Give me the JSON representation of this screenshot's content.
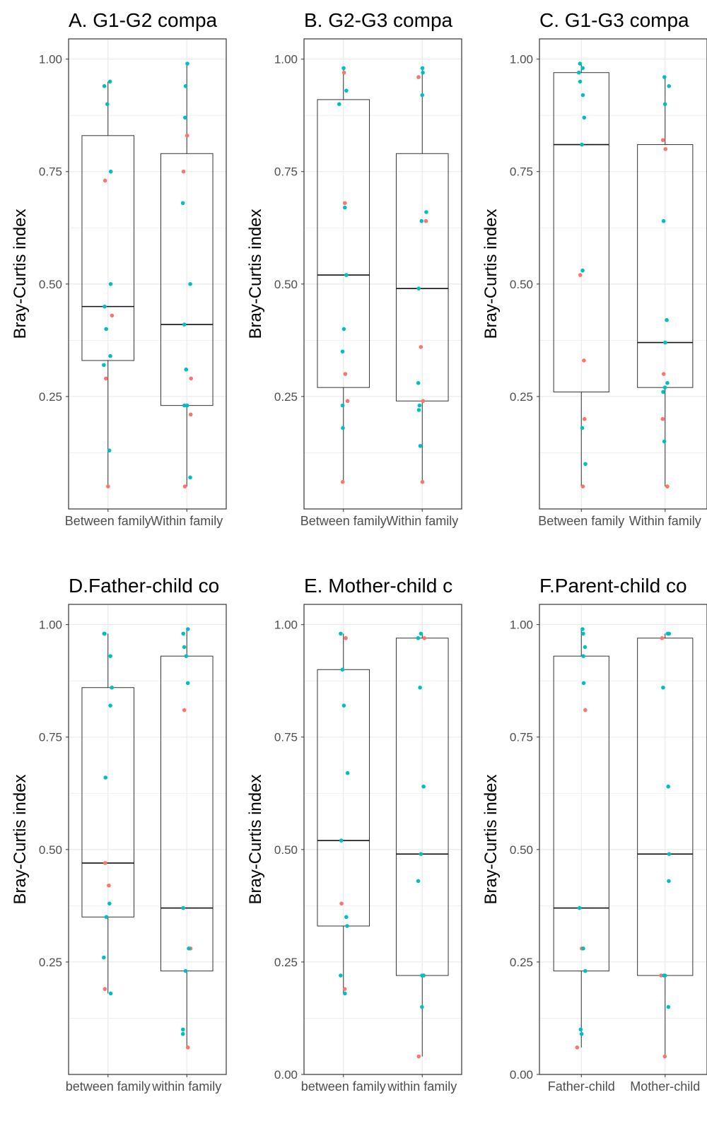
{
  "chart_data": [
    {
      "type": "box",
      "title": "A. G1-G2 compa",
      "ylabel": "Bray-Curtis index",
      "categories": [
        "Between family",
        "Within family"
      ],
      "yticks": [
        "1.00",
        "0.75",
        "0.50",
        "0.25"
      ],
      "ylim": [
        0.0,
        1.045
      ],
      "boxes": [
        {
          "q1": 0.33,
          "median": 0.45,
          "q3": 0.83,
          "wmin": 0.05,
          "wmax": 0.95
        },
        {
          "q1": 0.23,
          "median": 0.41,
          "q3": 0.79,
          "wmin": 0.05,
          "wmax": 0.99
        }
      ],
      "points": [
        [
          [
            0.95,
            "t"
          ],
          [
            0.94,
            "t"
          ],
          [
            0.9,
            "t"
          ],
          [
            0.75,
            "t"
          ],
          [
            0.73,
            "r"
          ],
          [
            0.5,
            "t"
          ],
          [
            0.45,
            "t"
          ],
          [
            0.43,
            "r"
          ],
          [
            0.4,
            "t"
          ],
          [
            0.34,
            "t"
          ],
          [
            0.32,
            "t"
          ],
          [
            0.29,
            "r"
          ],
          [
            0.13,
            "t"
          ],
          [
            0.05,
            "r"
          ]
        ],
        [
          [
            0.99,
            "t"
          ],
          [
            0.94,
            "t"
          ],
          [
            0.87,
            "t"
          ],
          [
            0.83,
            "r"
          ],
          [
            0.75,
            "r"
          ],
          [
            0.68,
            "t"
          ],
          [
            0.5,
            "t"
          ],
          [
            0.41,
            "t"
          ],
          [
            0.31,
            "t"
          ],
          [
            0.29,
            "r"
          ],
          [
            0.23,
            "t"
          ],
          [
            0.23,
            "t"
          ],
          [
            0.21,
            "r"
          ],
          [
            0.07,
            "t"
          ],
          [
            0.05,
            "r"
          ]
        ]
      ]
    },
    {
      "type": "box",
      "title": "B. G2-G3 compa",
      "ylabel": "Bray-Curtis index",
      "categories": [
        "Between family",
        "Within family"
      ],
      "yticks": [
        "1.00",
        "0.75",
        "0.50",
        "0.25"
      ],
      "ylim": [
        0.0,
        1.045
      ],
      "boxes": [
        {
          "q1": 0.27,
          "median": 0.52,
          "q3": 0.91,
          "wmin": 0.06,
          "wmax": 0.98
        },
        {
          "q1": 0.24,
          "median": 0.49,
          "q3": 0.79,
          "wmin": 0.06,
          "wmax": 0.98
        }
      ],
      "points": [
        [
          [
            0.98,
            "t"
          ],
          [
            0.97,
            "r"
          ],
          [
            0.93,
            "t"
          ],
          [
            0.9,
            "t"
          ],
          [
            0.68,
            "r"
          ],
          [
            0.67,
            "t"
          ],
          [
            0.52,
            "t"
          ],
          [
            0.4,
            "t"
          ],
          [
            0.35,
            "t"
          ],
          [
            0.3,
            "r"
          ],
          [
            0.24,
            "r"
          ],
          [
            0.23,
            "t"
          ],
          [
            0.18,
            "t"
          ],
          [
            0.06,
            "r"
          ]
        ],
        [
          [
            0.98,
            "t"
          ],
          [
            0.97,
            "t"
          ],
          [
            0.96,
            "r"
          ],
          [
            0.92,
            "t"
          ],
          [
            0.66,
            "t"
          ],
          [
            0.64,
            "t"
          ],
          [
            0.64,
            "r"
          ],
          [
            0.49,
            "t"
          ],
          [
            0.36,
            "r"
          ],
          [
            0.28,
            "t"
          ],
          [
            0.24,
            "r"
          ],
          [
            0.23,
            "t"
          ],
          [
            0.22,
            "t"
          ],
          [
            0.14,
            "t"
          ],
          [
            0.06,
            "r"
          ]
        ]
      ]
    },
    {
      "type": "box",
      "title": "C. G1-G3 compa",
      "ylabel": "Bray-Curtis index",
      "categories": [
        "Between family",
        "Within family"
      ],
      "yticks": [
        "1.00",
        "0.75",
        "0.50",
        "0.25"
      ],
      "ylim": [
        0.0,
        1.045
      ],
      "boxes": [
        {
          "q1": 0.26,
          "median": 0.81,
          "q3": 0.97,
          "wmin": 0.05,
          "wmax": 0.99
        },
        {
          "q1": 0.27,
          "median": 0.37,
          "q3": 0.81,
          "wmin": 0.05,
          "wmax": 0.96
        }
      ],
      "points": [
        [
          [
            0.99,
            "t"
          ],
          [
            0.98,
            "t"
          ],
          [
            0.97,
            "t"
          ],
          [
            0.95,
            "t"
          ],
          [
            0.92,
            "t"
          ],
          [
            0.87,
            "t"
          ],
          [
            0.81,
            "t"
          ],
          [
            0.53,
            "t"
          ],
          [
            0.52,
            "r"
          ],
          [
            0.33,
            "r"
          ],
          [
            0.2,
            "r"
          ],
          [
            0.18,
            "t"
          ],
          [
            0.1,
            "t"
          ],
          [
            0.05,
            "r"
          ]
        ],
        [
          [
            0.96,
            "t"
          ],
          [
            0.94,
            "t"
          ],
          [
            0.9,
            "t"
          ],
          [
            0.82,
            "r"
          ],
          [
            0.8,
            "r"
          ],
          [
            0.64,
            "t"
          ],
          [
            0.42,
            "t"
          ],
          [
            0.37,
            "t"
          ],
          [
            0.3,
            "r"
          ],
          [
            0.28,
            "t"
          ],
          [
            0.27,
            "t"
          ],
          [
            0.26,
            "t"
          ],
          [
            0.2,
            "r"
          ],
          [
            0.15,
            "t"
          ],
          [
            0.05,
            "r"
          ]
        ]
      ]
    },
    {
      "type": "box",
      "title": "D.Father-child co",
      "ylabel": "Bray-Curtis index",
      "categories": [
        "between family",
        "within family"
      ],
      "yticks": [
        "1.00",
        "0.75",
        "0.50",
        "0.25"
      ],
      "ylim": [
        0.0,
        1.045
      ],
      "boxes": [
        {
          "q1": 0.35,
          "median": 0.47,
          "q3": 0.86,
          "wmin": 0.18,
          "wmax": 0.98
        },
        {
          "q1": 0.23,
          "median": 0.37,
          "q3": 0.93,
          "wmin": 0.06,
          "wmax": 0.99
        }
      ],
      "points": [
        [
          [
            0.98,
            "t"
          ],
          [
            0.98,
            "t"
          ],
          [
            0.93,
            "t"
          ],
          [
            0.86,
            "t"
          ],
          [
            0.82,
            "t"
          ],
          [
            0.66,
            "t"
          ],
          [
            0.47,
            "r"
          ],
          [
            0.42,
            "r"
          ],
          [
            0.38,
            "t"
          ],
          [
            0.35,
            "t"
          ],
          [
            0.26,
            "t"
          ],
          [
            0.19,
            "r"
          ],
          [
            0.18,
            "t"
          ]
        ],
        [
          [
            0.99,
            "t"
          ],
          [
            0.98,
            "t"
          ],
          [
            0.95,
            "t"
          ],
          [
            0.93,
            "t"
          ],
          [
            0.87,
            "t"
          ],
          [
            0.81,
            "r"
          ],
          [
            0.37,
            "t"
          ],
          [
            0.28,
            "r"
          ],
          [
            0.28,
            "t"
          ],
          [
            0.23,
            "t"
          ],
          [
            0.1,
            "t"
          ],
          [
            0.09,
            "t"
          ],
          [
            0.06,
            "r"
          ]
        ]
      ]
    },
    {
      "type": "box",
      "title": "E. Mother-child c",
      "ylabel": "Bray-Curtis index",
      "categories": [
        "between family",
        "within family"
      ],
      "yticks": [
        "1.00",
        "0.75",
        "0.50",
        "0.25",
        "0.00"
      ],
      "ylim": [
        0.0,
        1.045
      ],
      "boxes": [
        {
          "q1": 0.33,
          "median": 0.52,
          "q3": 0.9,
          "wmin": 0.18,
          "wmax": 0.98
        },
        {
          "q1": 0.22,
          "median": 0.49,
          "q3": 0.97,
          "wmin": 0.04,
          "wmax": 0.98
        }
      ],
      "points": [
        [
          [
            0.98,
            "t"
          ],
          [
            0.97,
            "r"
          ],
          [
            0.9,
            "t"
          ],
          [
            0.82,
            "t"
          ],
          [
            0.67,
            "t"
          ],
          [
            0.52,
            "t"
          ],
          [
            0.38,
            "r"
          ],
          [
            0.35,
            "t"
          ],
          [
            0.33,
            "t"
          ],
          [
            0.22,
            "t"
          ],
          [
            0.19,
            "r"
          ],
          [
            0.18,
            "t"
          ]
        ],
        [
          [
            0.98,
            "t"
          ],
          [
            0.97,
            "t"
          ],
          [
            0.97,
            "r"
          ],
          [
            0.86,
            "t"
          ],
          [
            0.64,
            "t"
          ],
          [
            0.49,
            "t"
          ],
          [
            0.43,
            "t"
          ],
          [
            0.22,
            "r"
          ],
          [
            0.22,
            "t"
          ],
          [
            0.22,
            "t"
          ],
          [
            0.15,
            "t"
          ],
          [
            0.04,
            "r"
          ]
        ]
      ]
    },
    {
      "type": "box",
      "title": "F.Parent-child co",
      "ylabel": "Bray-Curtis index",
      "categories": [
        "Father-child",
        "Mother-child"
      ],
      "yticks": [
        "1.00",
        "0.75",
        "0.50",
        "0.25",
        "0.00"
      ],
      "ylim": [
        0.0,
        1.045
      ],
      "boxes": [
        {
          "q1": 0.23,
          "median": 0.37,
          "q3": 0.93,
          "wmin": 0.06,
          "wmax": 0.99
        },
        {
          "q1": 0.22,
          "median": 0.49,
          "q3": 0.97,
          "wmin": 0.04,
          "wmax": 0.98
        }
      ],
      "points": [
        [
          [
            0.99,
            "t"
          ],
          [
            0.98,
            "t"
          ],
          [
            0.95,
            "t"
          ],
          [
            0.93,
            "t"
          ],
          [
            0.87,
            "t"
          ],
          [
            0.81,
            "r"
          ],
          [
            0.37,
            "t"
          ],
          [
            0.28,
            "r"
          ],
          [
            0.28,
            "t"
          ],
          [
            0.23,
            "t"
          ],
          [
            0.1,
            "t"
          ],
          [
            0.09,
            "t"
          ],
          [
            0.06,
            "r"
          ]
        ],
        [
          [
            0.98,
            "t"
          ],
          [
            0.98,
            "t"
          ],
          [
            0.97,
            "r"
          ],
          [
            0.86,
            "t"
          ],
          [
            0.64,
            "t"
          ],
          [
            0.49,
            "t"
          ],
          [
            0.43,
            "t"
          ],
          [
            0.22,
            "r"
          ],
          [
            0.22,
            "t"
          ],
          [
            0.22,
            "t"
          ],
          [
            0.15,
            "t"
          ],
          [
            0.04,
            "r"
          ]
        ]
      ]
    }
  ],
  "colors": {
    "teal": "#00BFC4",
    "red": "#F8766D",
    "grid": "#EBEBEB",
    "axis": "#333333"
  }
}
